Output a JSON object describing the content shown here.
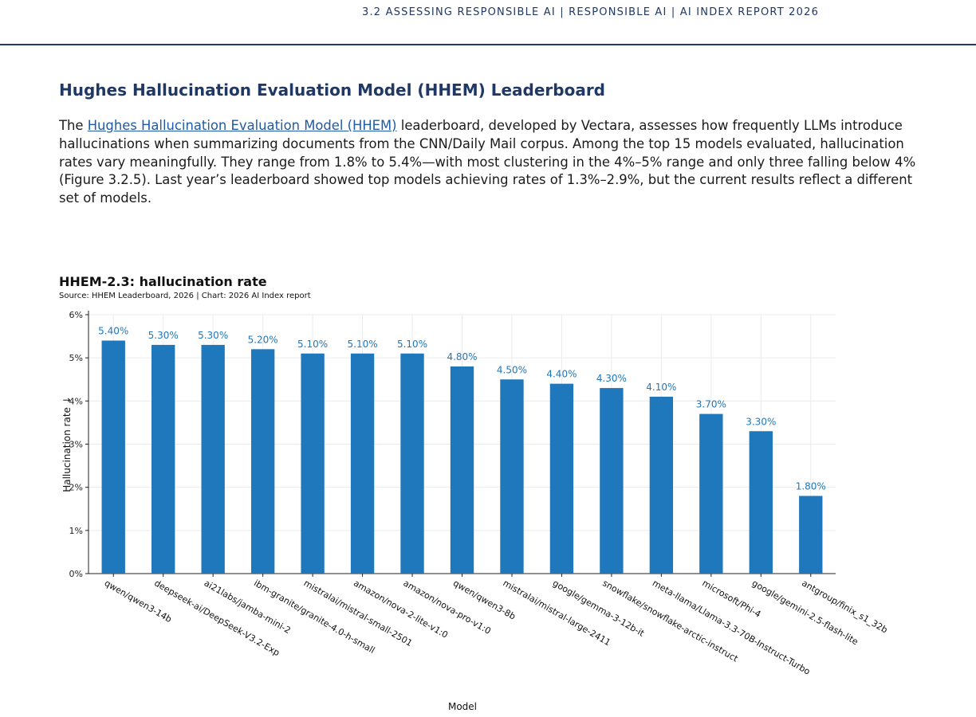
{
  "header": {
    "breadcrumb": "3.2 ASSESSING RESPONSIBLE AI  |  RESPONSIBLE AI  |  AI INDEX REPORT 2026"
  },
  "section": {
    "title": "Hughes Hallucination Evaluation Model (HHEM) Leaderboard",
    "para_before_link": "The ",
    "link_text": "Hughes Hallucination Evaluation Model (HHEM)",
    "para_after_link": " leaderboard, developed by Vectara, assesses how frequently LLMs introduce hallucinations when summarizing documents from the CNN/Daily Mail corpus. Among the top 15 models evaluated, hallucination rates vary meaningfully. They range from 1.8% to 5.4%—with most clustering in the 4%–5% range and only three falling below 4% (Figure 3.2.5). Last year’s leaderboard showed top models achieving rates of 1.3%–2.9%, but the current results reflect a different set of models."
  },
  "chart": {
    "title": "HHEM-2.3: hallucination rate",
    "source": "Source: HHEM Leaderboard, 2026 | Chart: 2026 AI Index report"
  },
  "colors": {
    "bar": "#1f77bc",
    "value_label": "#1f77bc",
    "grid": "#ebebeb",
    "axis": "#222222"
  },
  "chart_data": {
    "type": "bar",
    "title": "HHEM-2.3: hallucination rate",
    "xlabel": "Model",
    "ylabel": "Hallucination rate ↓",
    "ylim": [
      0,
      6
    ],
    "yticks": [
      "0%",
      "1%",
      "2%",
      "3%",
      "4%",
      "5%",
      "6%"
    ],
    "grid": true,
    "categories": [
      "qwen/qwen3-14b",
      "deepseek-ai/DeepSeek-V3.2-Exp",
      "ai21labs/jamba-mini-2",
      "ibm-granite/granite-4.0-h-small",
      "mistralai/mistral-small-2501",
      "amazon/nova-2-lite-v1:0",
      "amazon/nova-pro-v1:0",
      "qwen/qwen3-8b",
      "mistralai/mistral-large-2411",
      "google/gemma-3-12b-it",
      "snowflake/snowflake-arctic-instruct",
      "meta-llama/Llama-3.3-70B-Instruct-Turbo",
      "microsoft/Phi-4",
      "google/gemini-2.5-flash-lite",
      "antgroup/finix_s1_32b"
    ],
    "values": [
      5.4,
      5.3,
      5.3,
      5.2,
      5.1,
      5.1,
      5.1,
      4.8,
      4.5,
      4.4,
      4.3,
      4.1,
      3.7,
      3.3,
      1.8
    ],
    "value_labels": [
      "5.40%",
      "5.30%",
      "5.30%",
      "5.20%",
      "5.10%",
      "5.10%",
      "5.10%",
      "4.80%",
      "4.50%",
      "4.40%",
      "4.30%",
      "4.10%",
      "3.70%",
      "3.30%",
      "1.80%"
    ]
  }
}
